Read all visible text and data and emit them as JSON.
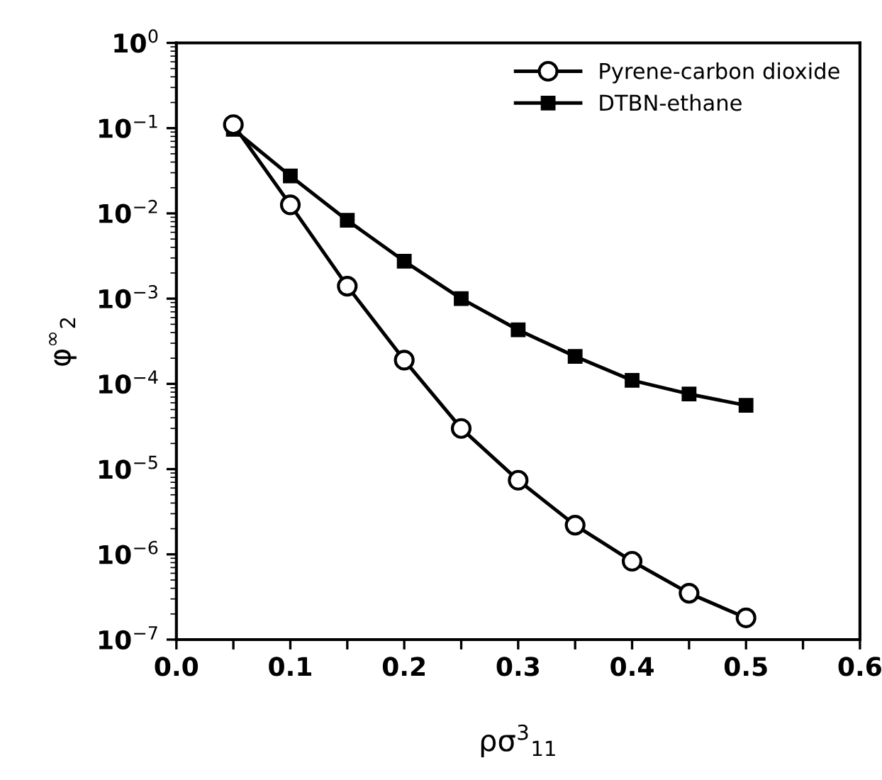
{
  "chart_data": {
    "type": "line",
    "xlabel": "ρσ$^{3}$$_{11}$",
    "ylabel": "φ$^{∞}$$_{2}$",
    "log": "y",
    "x": [
      0.05,
      0.1,
      0.15,
      0.2,
      0.25,
      0.3,
      0.35,
      0.4,
      0.45,
      0.5
    ],
    "series": [
      {
        "name": "Pyrene-carbon dioxide",
        "color": "#000000",
        "marker": "circle",
        "values": [
          0.11,
          0.0126,
          0.0014,
          0.00019,
          3e-05,
          7.4e-06,
          2.2e-06,
          8.3e-07,
          3.5e-07,
          1.8e-07
        ]
      },
      {
        "name": "DTBN-ethane",
        "color": "#000000",
        "marker": "square",
        "values": [
          0.097,
          0.0275,
          0.0083,
          0.00275,
          0.001,
          0.00043,
          0.00021,
          0.00011,
          7.6e-05,
          5.6e-05
        ]
      }
    ],
    "xlim": [
      0.0,
      0.6
    ],
    "ylim": [
      1e-07,
      1
    ],
    "xticks": [
      {
        "value": 0.0,
        "label": "0.0"
      },
      {
        "value": 0.05,
        "label": null
      },
      {
        "value": 0.1,
        "label": "0.1"
      },
      {
        "value": 0.15,
        "label": null
      },
      {
        "value": 0.2,
        "label": "0.2"
      },
      {
        "value": 0.25,
        "label": null
      },
      {
        "value": 0.3,
        "label": "0.3"
      },
      {
        "value": 0.35,
        "label": null
      },
      {
        "value": 0.4,
        "label": "0.4"
      },
      {
        "value": 0.45,
        "label": null
      },
      {
        "value": 0.5,
        "label": "0.5"
      },
      {
        "value": 0.55,
        "label": null
      },
      {
        "value": 0.6,
        "label": "0.6"
      }
    ],
    "yticks": [
      {
        "value": 1e-07,
        "label": "10$^{−7}$"
      },
      {
        "value": 1e-06,
        "label": "10$^{−6}$"
      },
      {
        "value": 1e-05,
        "label": "10$^{−5}$"
      },
      {
        "value": 0.0001,
        "label": "10$^{−4}$"
      },
      {
        "value": 0.001,
        "label": "10$^{−3}$"
      },
      {
        "value": 0.01,
        "label": "10$^{−2}$"
      },
      {
        "value": 0.1,
        "label": "10$^{−1}$"
      },
      {
        "value": 1,
        "label": "10$^{0}$"
      }
    ],
    "legend": "top right",
    "grid": false,
    "line_style": "solid"
  }
}
